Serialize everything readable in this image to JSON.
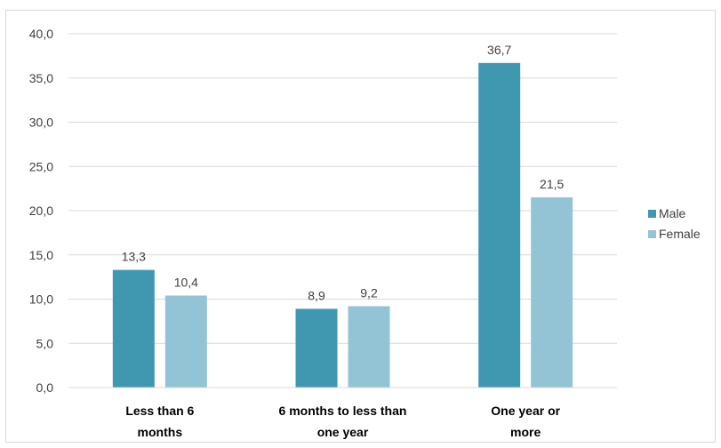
{
  "chart_data": {
    "type": "bar",
    "categories": [
      [
        "Less than 6",
        "months"
      ],
      [
        "6 months to less than",
        "one year"
      ],
      [
        "One year or",
        "more"
      ]
    ],
    "series": [
      {
        "name": "Male",
        "color": "#3f98b0",
        "values": [
          13.3,
          8.9,
          36.7
        ],
        "labels": [
          "13,3",
          "8,9",
          "36,7"
        ]
      },
      {
        "name": "Female",
        "color": "#92c4d5",
        "values": [
          10.4,
          9.2,
          21.5
        ],
        "labels": [
          "10,4",
          "9,2",
          "21,5"
        ]
      }
    ],
    "ylim": [
      0,
      40
    ],
    "yticks": [
      "0,0",
      "5,0",
      "10,0",
      "15,0",
      "20,0",
      "25,0",
      "30,0",
      "35,0",
      "40,0"
    ],
    "grid": true,
    "legend_position": "right",
    "title": "",
    "xlabel": "",
    "ylabel": ""
  }
}
